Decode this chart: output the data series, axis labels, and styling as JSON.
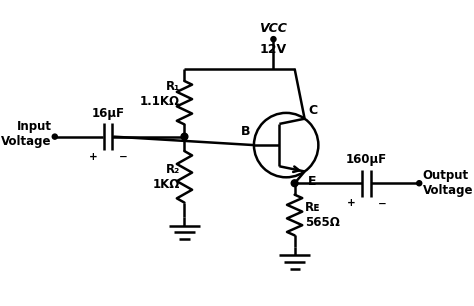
{
  "bg_color": "#ffffff",
  "line_color": "#000000",
  "line_width": 1.8,
  "vcc_label": "VCC",
  "vcc_voltage": "12V",
  "r1_label": "R₁\n1.1KΩ",
  "r2_label": "R₂\n1KΩ",
  "re_label": "Rᴇ\n565Ω",
  "cap1_label": "16μF",
  "cap2_label": "160μF",
  "input_label": "Input\nVoltage",
  "output_label": "Output\nVoltage",
  "b_label": "B",
  "c_label": "C",
  "e_label": "E",
  "plus": "+",
  "minus": "-"
}
